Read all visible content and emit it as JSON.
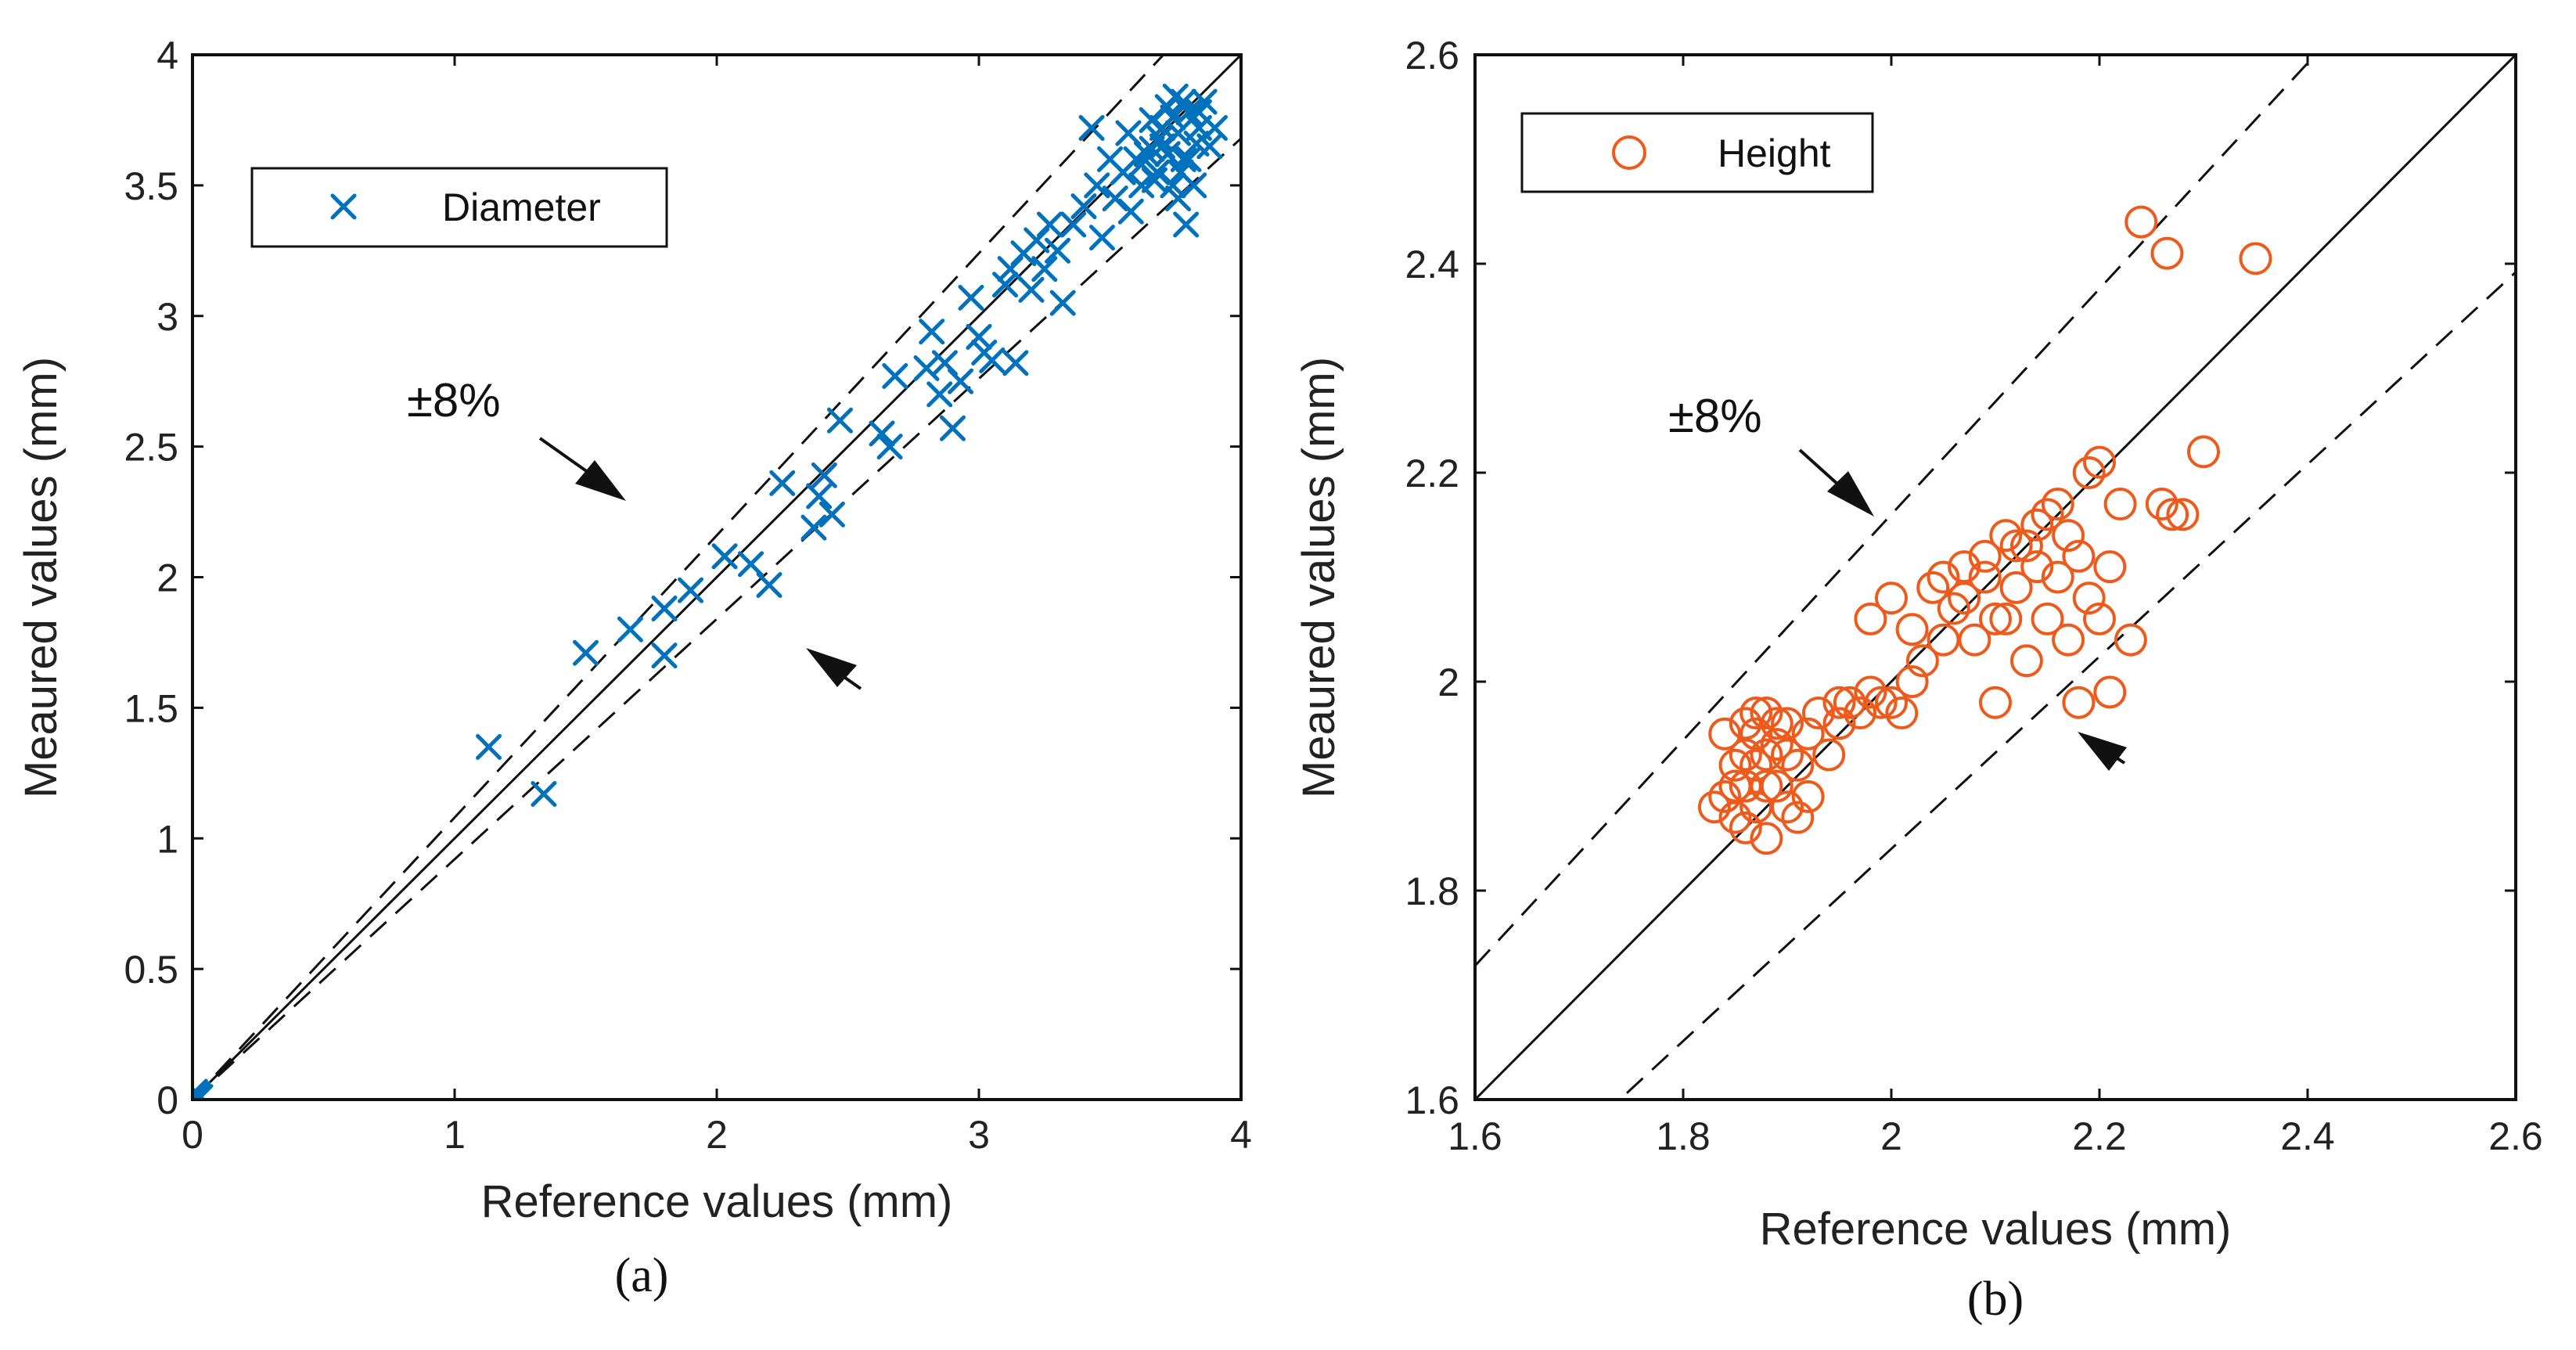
{
  "chart_data": [
    {
      "type": "scatter",
      "caption": "(a)",
      "xlabel": "Reference values (mm)",
      "ylabel": "Meaured values (mm)",
      "xlim": [
        0,
        4
      ],
      "ylim": [
        0,
        4
      ],
      "xticks": [
        "0",
        "1",
        "2",
        "3",
        "4"
      ],
      "yticks": [
        "0",
        "0.5",
        "1",
        "1.5",
        "2",
        "2.5",
        "3",
        "3.5",
        "4"
      ],
      "legend": {
        "label": "Diameter",
        "marker": "x",
        "color": "#0072BD",
        "position": "top-left"
      },
      "reference_lines": [
        {
          "type": "identity",
          "style": "solid"
        },
        {
          "type": "ratio",
          "factor": 1.08,
          "style": "dashed"
        },
        {
          "type": "ratio",
          "factor": 0.92,
          "style": "dashed"
        }
      ],
      "annotation": {
        "text": "±8%"
      },
      "series": [
        {
          "name": "Diameter",
          "marker": "x",
          "color": "#0072BD",
          "points": [
            [
              0,
              0
            ],
            [
              0.02,
              0.02
            ],
            [
              0.01,
              0.03
            ],
            [
              0.03,
              0.01
            ],
            [
              1.13,
              1.35
            ],
            [
              1.34,
              1.17
            ],
            [
              1.5,
              1.71
            ],
            [
              1.67,
              1.8
            ],
            [
              1.8,
              1.7
            ],
            [
              1.8,
              1.88
            ],
            [
              1.9,
              1.95
            ],
            [
              2.03,
              2.08
            ],
            [
              2.13,
              2.05
            ],
            [
              2.2,
              1.97
            ],
            [
              2.25,
              2.36
            ],
            [
              2.37,
              2.19
            ],
            [
              2.39,
              2.31
            ],
            [
              2.41,
              2.39
            ],
            [
              2.44,
              2.24
            ],
            [
              2.47,
              2.6
            ],
            [
              2.63,
              2.55
            ],
            [
              2.66,
              2.5
            ],
            [
              2.68,
              2.77
            ],
            [
              2.8,
              2.8
            ],
            [
              2.82,
              2.94
            ],
            [
              2.85,
              2.7
            ],
            [
              2.87,
              2.82
            ],
            [
              2.9,
              2.57
            ],
            [
              2.93,
              2.75
            ],
            [
              2.97,
              3.07
            ],
            [
              3.0,
              2.92
            ],
            [
              3.02,
              2.86
            ],
            [
              3.05,
              2.83
            ],
            [
              3.1,
              3.12
            ],
            [
              3.12,
              3.18
            ],
            [
              3.14,
              2.82
            ],
            [
              3.17,
              3.24
            ],
            [
              3.2,
              3.1
            ],
            [
              3.22,
              3.29
            ],
            [
              3.25,
              3.18
            ],
            [
              3.27,
              3.35
            ],
            [
              3.3,
              3.25
            ],
            [
              3.32,
              3.05
            ],
            [
              3.36,
              3.35
            ],
            [
              3.4,
              3.42
            ],
            [
              3.43,
              3.72
            ],
            [
              3.45,
              3.5
            ],
            [
              3.47,
              3.3
            ],
            [
              3.5,
              3.6
            ],
            [
              3.52,
              3.45
            ],
            [
              3.55,
              3.55
            ],
            [
              3.57,
              3.7
            ],
            [
              3.58,
              3.4
            ],
            [
              3.6,
              3.6
            ],
            [
              3.62,
              3.5
            ],
            [
              3.64,
              3.62
            ],
            [
              3.66,
              3.75
            ],
            [
              3.68,
              3.55
            ],
            [
              3.7,
              3.65
            ],
            [
              3.72,
              3.8
            ],
            [
              3.74,
              3.5
            ],
            [
              3.76,
              3.7
            ],
            [
              3.78,
              3.6
            ],
            [
              3.8,
              3.78
            ],
            [
              3.82,
              3.5
            ],
            [
              3.84,
              3.72
            ],
            [
              3.86,
              3.82
            ],
            [
              3.88,
              3.65
            ],
            [
              3.9,
              3.72
            ],
            [
              3.62,
              3.58
            ],
            [
              3.66,
              3.64
            ],
            [
              3.7,
              3.72
            ],
            [
              3.74,
              3.76
            ],
            [
              3.78,
              3.82
            ],
            [
              3.8,
              3.6
            ],
            [
              3.79,
              3.35
            ],
            [
              3.76,
              3.45
            ],
            [
              3.72,
              3.62
            ],
            [
              3.69,
              3.68
            ],
            [
              3.84,
              3.78
            ],
            [
              3.75,
              3.84
            ],
            [
              3.67,
              3.52
            ],
            [
              3.83,
              3.66
            ],
            [
              3.77,
              3.55
            ]
          ]
        }
      ]
    },
    {
      "type": "scatter",
      "caption": "(b)",
      "xlabel": "Reference values (mm)",
      "ylabel": "Meaured values (mm)",
      "xlim": [
        1.6,
        2.6
      ],
      "ylim": [
        1.6,
        2.6
      ],
      "xticks": [
        "1.6",
        "1.8",
        "2",
        "2.2",
        "2.4",
        "2.6"
      ],
      "yticks": [
        "1.6",
        "1.8",
        "2",
        "2.2",
        "2.4",
        "2.6"
      ],
      "legend": {
        "label": "Height",
        "marker": "o",
        "color": "#EE5A1B",
        "position": "top-left"
      },
      "reference_lines": [
        {
          "type": "identity",
          "style": "solid"
        },
        {
          "type": "ratio",
          "factor": 1.08,
          "style": "dashed"
        },
        {
          "type": "ratio",
          "factor": 0.92,
          "style": "dashed"
        }
      ],
      "annotation": {
        "text": "±8%"
      },
      "series": [
        {
          "name": "Height",
          "marker": "o",
          "color": "#EE5A1B",
          "points": [
            [
              1.83,
              1.88
            ],
            [
              1.84,
              1.95
            ],
            [
              1.85,
              1.9
            ],
            [
              1.85,
              1.87
            ],
            [
              1.86,
              1.93
            ],
            [
              1.86,
              1.96
            ],
            [
              1.87,
              1.88
            ],
            [
              1.87,
              1.92
            ],
            [
              1.88,
              1.85
            ],
            [
              1.88,
              1.97
            ],
            [
              1.89,
              1.9
            ],
            [
              1.89,
              1.94
            ],
            [
              1.9,
              1.88
            ],
            [
              1.9,
              1.96
            ],
            [
              1.91,
              1.92
            ],
            [
              1.92,
              1.95
            ],
            [
              1.92,
              1.89
            ],
            [
              1.93,
              1.97
            ],
            [
              1.94,
              1.93
            ],
            [
              1.95,
              1.96
            ],
            [
              1.96,
              1.98
            ],
            [
              1.97,
              1.97
            ],
            [
              1.98,
              2.06
            ],
            [
              1.99,
              1.98
            ],
            [
              2.0,
              2.08
            ],
            [
              2.01,
              1.97
            ],
            [
              2.02,
              2.05
            ],
            [
              2.03,
              2.02
            ],
            [
              2.04,
              2.09
            ],
            [
              2.05,
              2.1
            ],
            [
              2.06,
              2.07
            ],
            [
              2.07,
              2.11
            ],
            [
              2.08,
              2.04
            ],
            [
              2.09,
              2.12
            ],
            [
              2.1,
              1.98
            ],
            [
              2.1,
              2.06
            ],
            [
              2.11,
              2.14
            ],
            [
              2.12,
              2.09
            ],
            [
              2.13,
              2.13
            ],
            [
              2.14,
              2.11
            ],
            [
              2.15,
              2.16
            ],
            [
              2.15,
              2.06
            ],
            [
              2.16,
              2.1
            ],
            [
              2.17,
              2.04
            ],
            [
              2.17,
              2.14
            ],
            [
              2.18,
              1.98
            ],
            [
              2.18,
              2.12
            ],
            [
              2.19,
              2.2
            ],
            [
              2.19,
              2.08
            ],
            [
              2.2,
              2.21
            ],
            [
              2.2,
              2.06
            ],
            [
              2.21,
              1.99
            ],
            [
              2.21,
              2.11
            ],
            [
              2.22,
              2.17
            ],
            [
              2.23,
              2.04
            ],
            [
              2.24,
              2.44
            ],
            [
              2.26,
              2.17
            ],
            [
              2.265,
              2.41
            ],
            [
              2.27,
              2.16
            ],
            [
              2.28,
              2.16
            ],
            [
              2.3,
              2.22
            ],
            [
              2.35,
              2.405
            ],
            [
              2.12,
              2.13
            ],
            [
              2.14,
              2.15
            ],
            [
              2.16,
              2.17
            ],
            [
              2.13,
              2.02
            ],
            [
              2.11,
              2.06
            ],
            [
              2.09,
              2.1
            ],
            [
              2.07,
              2.08
            ],
            [
              2.05,
              2.04
            ],
            [
              1.95,
              1.98
            ],
            [
              1.98,
              1.99
            ],
            [
              2.0,
              1.98
            ],
            [
              2.02,
              2.0
            ],
            [
              1.84,
              1.89
            ],
            [
              1.85,
              1.92
            ],
            [
              1.86,
              1.86
            ],
            [
              1.87,
              1.95
            ],
            [
              1.88,
              1.9
            ],
            [
              1.89,
              1.96
            ],
            [
              1.9,
              1.93
            ],
            [
              1.91,
              1.87
            ],
            [
              1.86,
              1.9
            ],
            [
              1.87,
              1.97
            ],
            [
              1.88,
              1.93
            ]
          ]
        }
      ]
    }
  ]
}
